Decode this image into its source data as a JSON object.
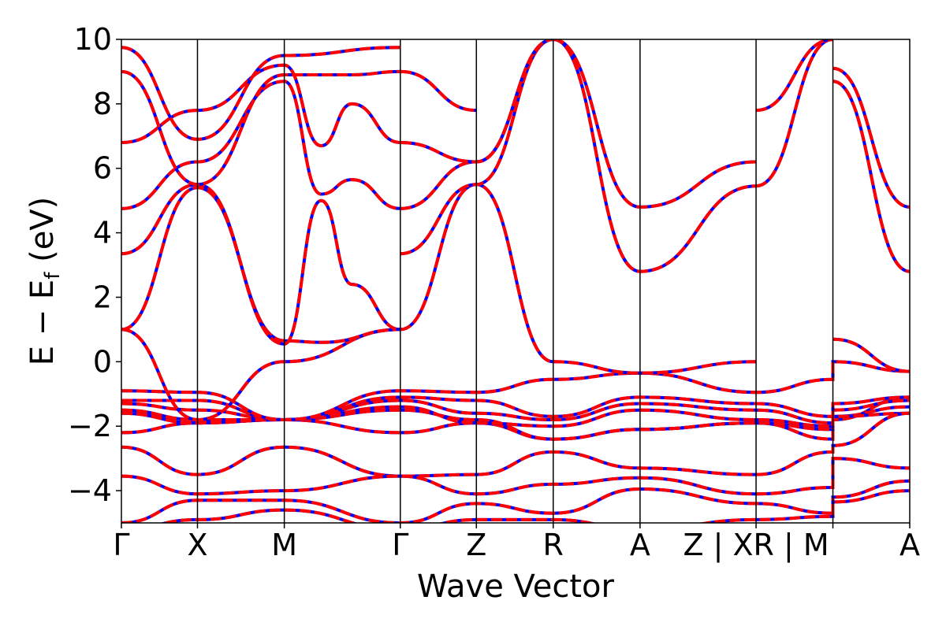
{
  "chart_data": {
    "type": "line",
    "xlabel": "Wave Vector",
    "ylabel": "E − E",
    "ylabel_sub": "f",
    "ylabel_unit": " (eV)",
    "ylim": [
      -5,
      10
    ],
    "yticks": [
      -4,
      -2,
      0,
      2,
      4,
      6,
      8,
      10
    ],
    "ytick_labels": [
      "−4",
      "−2",
      "0",
      "2",
      "4",
      "6",
      "8",
      "10"
    ],
    "xlim": [
      0,
      10.26
    ],
    "kpoints": [
      {
        "label": "Γ",
        "x": 0
      },
      {
        "label": "X",
        "x": 0.99
      },
      {
        "label": "M",
        "x": 2.12
      },
      {
        "label": "Γ",
        "x": 3.63
      },
      {
        "label": "Z",
        "x": 4.62
      },
      {
        "label": "R",
        "x": 5.62
      },
      {
        "label": "A",
        "x": 6.75
      },
      {
        "label": "Z | XR | M",
        "x": 8.26
      },
      {
        "label": "",
        "x": 9.26
      },
      {
        "label": "A",
        "x": 10.26
      }
    ],
    "vlines": [
      0.99,
      2.12,
      3.63,
      4.62,
      5.62,
      6.75,
      8.26,
      9.26
    ],
    "colors": {
      "band_a": "#0000ff",
      "band_b": "#ff0000",
      "axes": "#000000"
    },
    "series": [
      {
        "x": [
          0,
          0.99,
          2.12,
          3.63,
          4.62,
          5.62,
          6.75,
          8.26,
          9.26,
          9.26,
          10.26
        ],
        "y": [
          -2.2,
          -1.9,
          -1.8,
          -2.2,
          -1.9,
          -2.4,
          -2.1,
          -1.9,
          -2.4,
          -1.8,
          -1.1
        ]
      },
      {
        "x": [
          0,
          0.99,
          2.12,
          3.63,
          4.62,
          5.62,
          6.75,
          8.26,
          9.26,
          9.26,
          10.26
        ],
        "y": [
          -1.6,
          -1.9,
          -1.8,
          -1.5,
          -1.8,
          -2.4,
          -2.1,
          -1.9,
          -2.1,
          -1.7,
          -1.4
        ]
      },
      {
        "x": [
          0,
          0.99,
          2.12,
          3.63,
          4.62,
          5.62,
          6.75,
          8.26,
          9.26,
          9.26,
          10.26
        ],
        "y": [
          -1.5,
          -1.8,
          -1.8,
          -1.4,
          -1.9,
          -2.0,
          -1.5,
          -1.8,
          -2.0,
          -1.7,
          -1.6
        ]
      },
      {
        "x": [
          0,
          0.99,
          2.12,
          3.63,
          4.62,
          5.62,
          6.75,
          8.26,
          9.26,
          9.26,
          10.26
        ],
        "y": [
          -1.3,
          -1.5,
          -1.8,
          -1.2,
          -1.6,
          -1.8,
          -1.3,
          -1.5,
          -1.9,
          -1.5,
          -1.2
        ]
      },
      {
        "x": [
          0,
          0.99,
          2.12,
          3.63,
          4.62,
          5.62,
          6.75,
          8.26,
          9.26,
          9.26,
          10.26
        ],
        "y": [
          -1.2,
          -1.2,
          -1.8,
          -1.1,
          -1.2,
          -1.7,
          -1.1,
          -1.3,
          -1.7,
          -1.3,
          -1.1
        ]
      },
      {
        "x": [
          0,
          0.99,
          2.12,
          3.63,
          4.62,
          5.62,
          6.75,
          8.26,
          9.26,
          9.26,
          10.26
        ],
        "y": [
          -0.9,
          -0.95,
          -1.8,
          -0.9,
          -0.95,
          -0.55,
          -0.35,
          -0.95,
          -0.55,
          -0.0,
          -0.3
        ]
      },
      {
        "x": [
          0,
          0.99,
          2.12,
          3.63,
          4.62,
          5.62,
          6.75,
          8.26,
          9.26,
          9.26,
          10.26
        ],
        "y": [
          -2.65,
          -3.5,
          -2.65,
          -3.55,
          -3.5,
          -2.8,
          -3.3,
          -3.5,
          -2.8,
          -2.6,
          -1.6
        ]
      },
      {
        "x": [
          0,
          0.99,
          2.12,
          3.63,
          4.62,
          5.62,
          6.75,
          8.26,
          9.26,
          9.26,
          10.26
        ],
        "y": [
          -3.55,
          -4.1,
          -4.0,
          -3.55,
          -4.1,
          -3.8,
          -3.6,
          -4.1,
          -3.9,
          -3.0,
          -3.3
        ]
      },
      {
        "x": [
          0,
          0.99,
          2.12,
          3.63,
          4.62,
          5.62,
          6.75,
          8.26,
          9.26,
          9.26,
          10.26
        ],
        "y": [
          -5.0,
          -4.3,
          -4.3,
          -5.0,
          -4.4,
          -4.7,
          -3.95,
          -4.4,
          -4.7,
          -4.2,
          -3.7
        ]
      },
      {
        "x": [
          0,
          0.99,
          2.12,
          3.63,
          4.62,
          5.62,
          6.75,
          8.26,
          9.26,
          9.26,
          10.26
        ],
        "y": [
          -5.2,
          -4.9,
          -4.6,
          -5.2,
          -4.9,
          -4.9,
          -5.2,
          -4.9,
          -4.8,
          -4.35,
          -4.0
        ]
      },
      {
        "x": [
          0,
          0.99,
          2.12,
          3.63
        ],
        "y": [
          1.0,
          -1.8,
          0.0,
          1.0
        ]
      },
      {
        "x": [
          0,
          0.99,
          2.12,
          2.6,
          3.63
        ],
        "y": [
          1.0,
          5.4,
          0.65,
          0.6,
          1.0
        ]
      },
      {
        "x": [
          0,
          0.99,
          2.12,
          2.6,
          3.0,
          3.63
        ],
        "y": [
          3.35,
          5.5,
          0.55,
          5.0,
          2.4,
          1.0
        ]
      },
      {
        "x": [
          0,
          0.99,
          2.12,
          2.6,
          3.0,
          3.63
        ],
        "y": [
          4.75,
          6.2,
          8.7,
          5.2,
          5.65,
          4.75
        ]
      },
      {
        "x": [
          0,
          0.99,
          2.12,
          2.6,
          3.0,
          3.63
        ],
        "y": [
          6.8,
          7.8,
          9.2,
          6.7,
          8.0,
          6.8
        ]
      },
      {
        "x": [
          0,
          0.99,
          2.12,
          3.0,
          3.63
        ],
        "y": [
          9.0,
          5.5,
          8.9,
          8.9,
          9.0
        ]
      },
      {
        "x": [
          0,
          0.99,
          2.12,
          3.63
        ],
        "y": [
          9.75,
          6.9,
          9.5,
          9.75
        ]
      },
      {
        "x": [
          3.63,
          4.62,
          5.62
        ],
        "y": [
          1.0,
          5.5,
          0.0
        ]
      },
      {
        "x": [
          3.63,
          4.62,
          5.62
        ],
        "y": [
          3.35,
          5.5,
          10.0
        ]
      },
      {
        "x": [
          3.63,
          4.62,
          5.62
        ],
        "y": [
          4.75,
          6.2,
          10.0
        ]
      },
      {
        "x": [
          3.63,
          4.62,
          5.62
        ],
        "y": [
          6.8,
          6.2,
          10.0
        ]
      },
      {
        "x": [
          3.63,
          4.62
        ],
        "y": [
          9.0,
          7.8
        ]
      },
      {
        "x": [
          5.62,
          6.75,
          8.26
        ],
        "y": [
          0.0,
          -0.35,
          0.0
        ]
      },
      {
        "x": [
          5.62,
          6.75,
          8.26
        ],
        "y": [
          10.0,
          2.8,
          5.45
        ]
      },
      {
        "x": [
          5.62,
          6.75,
          8.26
        ],
        "y": [
          10.0,
          4.8,
          6.2
        ]
      },
      {
        "x": [
          8.26,
          9.26
        ],
        "y": [
          5.45,
          10.0
        ]
      },
      {
        "x": [
          8.26,
          9.26
        ],
        "y": [
          7.8,
          10.0
        ]
      },
      {
        "x": [
          9.26,
          10.26
        ],
        "y": [
          0.7,
          -0.3
        ]
      },
      {
        "x": [
          9.26,
          10.26
        ],
        "y": [
          8.7,
          2.8
        ]
      },
      {
        "x": [
          9.26,
          10.26
        ],
        "y": [
          9.1,
          4.8
        ]
      }
    ]
  }
}
